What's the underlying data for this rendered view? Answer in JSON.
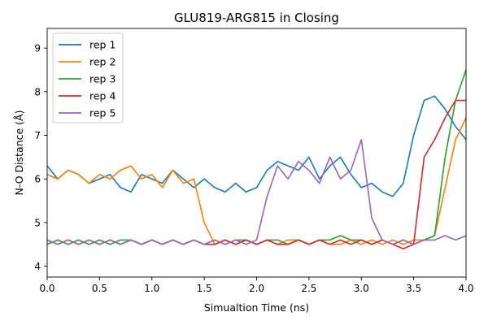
{
  "chart_data": {
    "type": "line",
    "title": "GLU819-ARG815 in Closing",
    "xlabel": "Simualtion Time (ns)",
    "ylabel": "N-O Distance (Å)",
    "xlim": [
      0.0,
      4.0
    ],
    "ylim": [
      3.75,
      9.45
    ],
    "xticks": [
      0.0,
      0.5,
      1.0,
      1.5,
      2.0,
      2.5,
      3.0,
      3.5,
      4.0
    ],
    "xtick_labels": [
      "0.0",
      "0.5",
      "1.0",
      "1.5",
      "2.0",
      "2.5",
      "3.0",
      "3.5",
      "4.0"
    ],
    "yticks": [
      4,
      5,
      6,
      7,
      8,
      9
    ],
    "ytick_labels": [
      "4",
      "5",
      "6",
      "7",
      "8",
      "9"
    ],
    "grid": false,
    "legend_position": "top-left",
    "series": [
      {
        "name": "rep 1",
        "color": "#1f77b4",
        "x": [
          0.0,
          0.1,
          0.2,
          0.3,
          0.4,
          0.5,
          0.6,
          0.7,
          0.8,
          0.9,
          1.0,
          1.1,
          1.2,
          1.3,
          1.4,
          1.5,
          1.6,
          1.7,
          1.8,
          1.9,
          2.0,
          2.1,
          2.2,
          2.3,
          2.4,
          2.5,
          2.6,
          2.7,
          2.8,
          2.9,
          3.0,
          3.1,
          3.2,
          3.3,
          3.4,
          3.5,
          3.6,
          3.7,
          3.8,
          3.9,
          4.0
        ],
        "y": [
          6.3,
          6.0,
          6.2,
          6.1,
          5.9,
          6.0,
          6.1,
          5.8,
          5.7,
          6.1,
          6.0,
          5.9,
          6.2,
          6.0,
          5.8,
          6.0,
          5.8,
          5.7,
          5.9,
          5.7,
          5.8,
          6.2,
          6.4,
          6.3,
          6.2,
          6.5,
          6.0,
          6.3,
          6.5,
          6.1,
          5.8,
          5.9,
          5.7,
          5.6,
          5.9,
          7.0,
          7.8,
          7.9,
          7.6,
          7.2,
          6.9
        ]
      },
      {
        "name": "rep 2",
        "color": "#ff7f0e",
        "x": [
          0.0,
          0.1,
          0.2,
          0.3,
          0.4,
          0.5,
          0.6,
          0.7,
          0.8,
          0.9,
          1.0,
          1.1,
          1.2,
          1.3,
          1.4,
          1.5,
          1.6,
          1.7,
          1.8,
          1.9,
          2.0,
          2.1,
          2.2,
          2.3,
          2.4,
          2.5,
          2.6,
          2.7,
          2.8,
          2.9,
          3.0,
          3.1,
          3.2,
          3.3,
          3.4,
          3.5,
          3.6,
          3.7,
          3.8,
          3.9,
          4.0
        ],
        "y": [
          6.1,
          6.0,
          6.2,
          6.1,
          5.9,
          6.1,
          6.0,
          6.2,
          6.3,
          6.0,
          6.1,
          5.8,
          6.2,
          5.9,
          6.0,
          5.0,
          4.5,
          4.6,
          4.5,
          4.6,
          4.5,
          4.6,
          4.5,
          4.6,
          4.6,
          4.5,
          4.6,
          4.5,
          4.5,
          4.6,
          4.5,
          4.6,
          4.5,
          4.6,
          4.5,
          4.6,
          4.6,
          4.7,
          5.8,
          6.9,
          7.4
        ]
      },
      {
        "name": "rep 3",
        "color": "#2ca02c",
        "x": [
          0.0,
          0.1,
          0.2,
          0.3,
          0.4,
          0.5,
          0.6,
          0.7,
          0.8,
          0.9,
          1.0,
          1.1,
          1.2,
          1.3,
          1.4,
          1.5,
          1.6,
          1.7,
          1.8,
          1.9,
          2.0,
          2.1,
          2.2,
          2.3,
          2.4,
          2.5,
          2.6,
          2.7,
          2.8,
          2.9,
          3.0,
          3.1,
          3.2,
          3.3,
          3.4,
          3.5,
          3.6,
          3.7,
          3.8,
          3.9,
          4.0
        ],
        "y": [
          4.5,
          4.6,
          4.5,
          4.6,
          4.5,
          4.6,
          4.5,
          4.6,
          4.6,
          4.5,
          4.6,
          4.5,
          4.6,
          4.5,
          4.6,
          4.5,
          4.6,
          4.5,
          4.6,
          4.6,
          4.5,
          4.6,
          4.6,
          4.5,
          4.6,
          4.5,
          4.6,
          4.6,
          4.7,
          4.6,
          4.6,
          4.5,
          4.6,
          4.5,
          4.6,
          4.5,
          4.6,
          4.7,
          6.5,
          7.8,
          8.5
        ]
      },
      {
        "name": "rep 4",
        "color": "#d62728",
        "x": [
          0.0,
          0.1,
          0.2,
          0.3,
          0.4,
          0.5,
          0.6,
          0.7,
          0.8,
          0.9,
          1.0,
          1.1,
          1.2,
          1.3,
          1.4,
          1.5,
          1.6,
          1.7,
          1.8,
          1.9,
          2.0,
          2.1,
          2.2,
          2.3,
          2.4,
          2.5,
          2.6,
          2.7,
          2.8,
          2.9,
          3.0,
          3.1,
          3.2,
          3.3,
          3.4,
          3.5,
          3.6,
          3.7,
          3.8,
          3.9,
          4.0
        ],
        "y": [
          4.6,
          4.5,
          4.6,
          4.5,
          4.6,
          4.5,
          4.6,
          4.5,
          4.6,
          4.5,
          4.6,
          4.5,
          4.6,
          4.5,
          4.6,
          4.5,
          4.5,
          4.6,
          4.5,
          4.6,
          4.5,
          4.6,
          4.5,
          4.5,
          4.6,
          4.5,
          4.6,
          4.5,
          4.6,
          4.5,
          4.6,
          4.5,
          4.6,
          4.5,
          4.4,
          4.5,
          6.5,
          6.9,
          7.4,
          7.8,
          7.8
        ]
      },
      {
        "name": "rep 5",
        "color": "#9467bd",
        "x": [
          0.0,
          0.1,
          0.2,
          0.3,
          0.4,
          0.5,
          0.6,
          0.7,
          0.8,
          0.9,
          1.0,
          1.1,
          1.2,
          1.3,
          1.4,
          1.5,
          1.6,
          1.7,
          1.8,
          1.9,
          2.0,
          2.1,
          2.2,
          2.3,
          2.4,
          2.5,
          2.6,
          2.7,
          2.8,
          2.9,
          3.0,
          3.1,
          3.2,
          3.3,
          3.4,
          3.5,
          3.6,
          3.7,
          3.8,
          3.9,
          4.0
        ],
        "y": [
          4.6,
          4.5,
          4.6,
          4.5,
          4.6,
          4.5,
          4.6,
          4.5,
          4.6,
          4.5,
          4.6,
          4.5,
          4.6,
          4.5,
          4.6,
          4.5,
          4.6,
          4.5,
          4.6,
          4.5,
          4.6,
          5.6,
          6.3,
          6.0,
          6.4,
          6.2,
          5.9,
          6.5,
          6.0,
          6.2,
          6.9,
          5.1,
          4.6,
          4.5,
          4.6,
          4.5,
          4.6,
          4.6,
          4.7,
          4.6,
          4.7
        ]
      }
    ]
  }
}
